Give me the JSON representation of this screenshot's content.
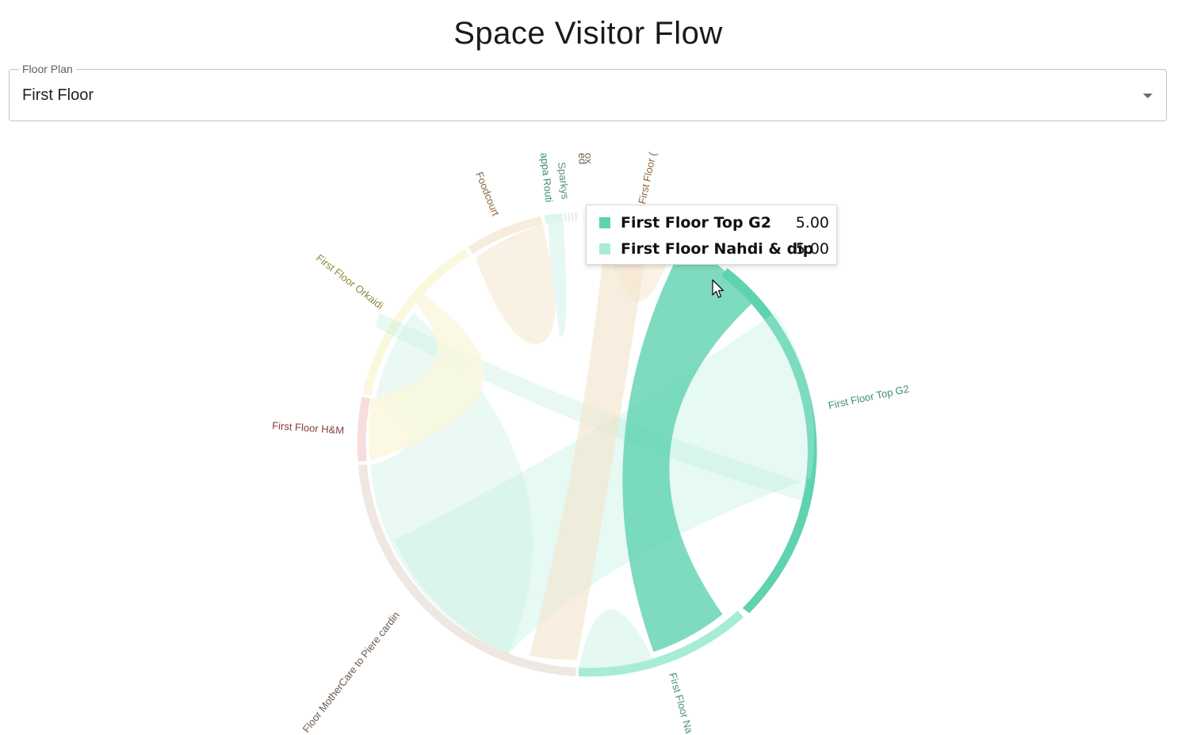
{
  "page": {
    "title": "Space Visitor Flow"
  },
  "floor_select": {
    "label": "Floor Plan",
    "value": "First Floor"
  },
  "tooltip": {
    "rows": [
      {
        "name": "First Floor Top G2",
        "value": "5.00",
        "color": "#5fd2b0"
      },
      {
        "name": "First Floor Nahdi & dip",
        "value": "5.00",
        "color": "#a8ebd7"
      }
    ]
  },
  "chart_data": {
    "type": "chord",
    "groups": [
      {
        "label": "First Floor Top G2",
        "color": "#5fd2b0",
        "highlighted": true
      },
      {
        "label": "First Floor Na",
        "color": "#a6ecd6",
        "highlighted": true
      },
      {
        "label": "Floor MotherCare to Piere cardin",
        "color": "#eee7e2"
      },
      {
        "label": "First Floor H&M",
        "color": "#f8dddd"
      },
      {
        "label": "First Floor Orkaidi",
        "color": "#faf8dd"
      },
      {
        "label": "Foodcourt",
        "color": "#f8ecdc"
      },
      {
        "label": "appa Routi",
        "color": "#ddf6f0"
      },
      {
        "label": "Sparkys",
        "color": "#e4f4ee"
      },
      {
        "label": "ed",
        "color": "#f2ece0"
      },
      {
        "label": "ox",
        "color": "#f2ece0"
      },
      {
        "label": "First Floor (",
        "color": "#f8ecdc"
      }
    ],
    "highlighted_flow": {
      "from": "First Floor Top G2",
      "to": "First Floor Nahdi & dip",
      "value": 5.0
    }
  }
}
